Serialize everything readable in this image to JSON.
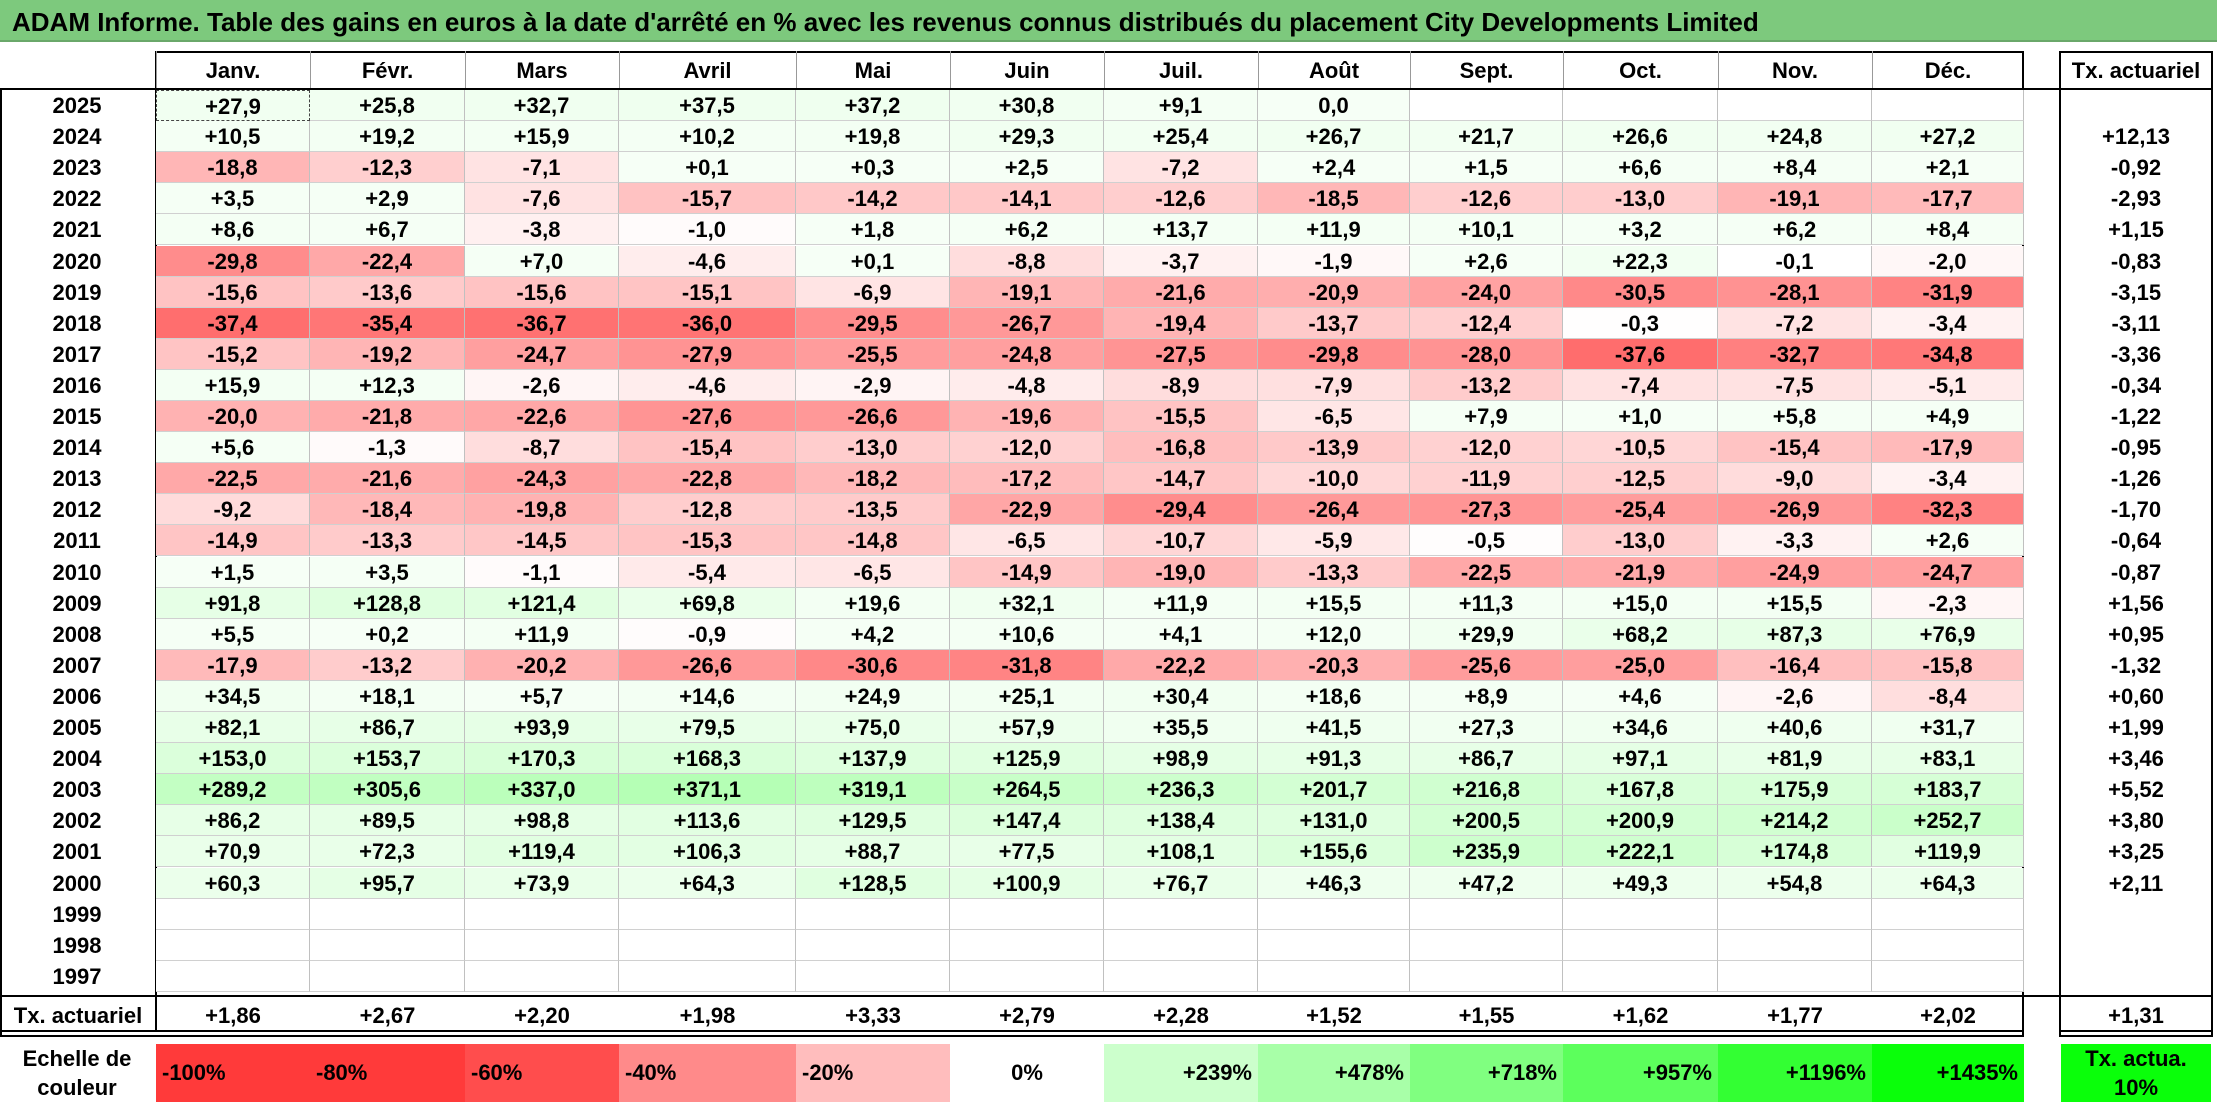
{
  "title": "ADAM Informe. Table des gains en euros à la date d'arrêté en % avec les revenus connus distribués du placement City Developments Limited",
  "months": [
    "Janv.",
    "Févr.",
    "Mars",
    "Avril",
    "Mai",
    "Juin",
    "Juil.",
    "Août",
    "Sept.",
    "Oct.",
    "Nov.",
    "Déc."
  ],
  "right_header": "Tx. actuariel",
  "footer_label": "Tx. actuariel",
  "chart_data": {
    "type": "heatmap",
    "title": "ADAM Informe. Table des gains en euros à la date d'arrêté en % avec les revenus connus distribués du placement City Developments Limited",
    "columns": [
      "Janv.",
      "Févr.",
      "Mars",
      "Avril",
      "Mai",
      "Juin",
      "Juil.",
      "Août",
      "Sept.",
      "Oct.",
      "Nov.",
      "Déc."
    ],
    "rows": [
      {
        "year": "2025",
        "values": [
          "+27,9",
          "+25,8",
          "+32,7",
          "+37,5",
          "+37,2",
          "+30,8",
          "+9,1",
          "0,0",
          "",
          "",
          "",
          ""
        ],
        "tx": ""
      },
      {
        "year": "2024",
        "values": [
          "+10,5",
          "+19,2",
          "+15,9",
          "+10,2",
          "+19,8",
          "+29,3",
          "+25,4",
          "+26,7",
          "+21,7",
          "+26,6",
          "+24,8",
          "+27,2"
        ],
        "tx": "+12,13"
      },
      {
        "year": "2023",
        "values": [
          "-18,8",
          "-12,3",
          "-7,1",
          "+0,1",
          "+0,3",
          "+2,5",
          "-7,2",
          "+2,4",
          "+1,5",
          "+6,6",
          "+8,4",
          "+2,1"
        ],
        "tx": "-0,92"
      },
      {
        "year": "2022",
        "values": [
          "+3,5",
          "+2,9",
          "-7,6",
          "-15,7",
          "-14,2",
          "-14,1",
          "-12,6",
          "-18,5",
          "-12,6",
          "-13,0",
          "-19,1",
          "-17,7"
        ],
        "tx": "-2,93"
      },
      {
        "year": "2021",
        "values": [
          "+8,6",
          "+6,7",
          "-3,8",
          "-1,0",
          "+1,8",
          "+6,2",
          "+13,7",
          "+11,9",
          "+10,1",
          "+3,2",
          "+6,2",
          "+8,4"
        ],
        "tx": "+1,15"
      },
      {
        "year": "2020",
        "values": [
          "-29,8",
          "-22,4",
          "+7,0",
          "-4,6",
          "+0,1",
          "-8,8",
          "-3,7",
          "-1,9",
          "+2,6",
          "+22,3",
          "-0,1",
          "-2,0"
        ],
        "tx": "-0,83"
      },
      {
        "year": "2019",
        "values": [
          "-15,6",
          "-13,6",
          "-15,6",
          "-15,1",
          "-6,9",
          "-19,1",
          "-21,6",
          "-20,9",
          "-24,0",
          "-30,5",
          "-28,1",
          "-31,9"
        ],
        "tx": "-3,15"
      },
      {
        "year": "2018",
        "values": [
          "-37,4",
          "-35,4",
          "-36,7",
          "-36,0",
          "-29,5",
          "-26,7",
          "-19,4",
          "-13,7",
          "-12,4",
          "-0,3",
          "-7,2",
          "-3,4"
        ],
        "tx": "-3,11"
      },
      {
        "year": "2017",
        "values": [
          "-15,2",
          "-19,2",
          "-24,7",
          "-27,9",
          "-25,5",
          "-24,8",
          "-27,5",
          "-29,8",
          "-28,0",
          "-37,6",
          "-32,7",
          "-34,8"
        ],
        "tx": "-3,36"
      },
      {
        "year": "2016",
        "values": [
          "+15,9",
          "+12,3",
          "-2,6",
          "-4,6",
          "-2,9",
          "-4,8",
          "-8,9",
          "-7,9",
          "-13,2",
          "-7,4",
          "-7,5",
          "-5,1"
        ],
        "tx": "-0,34"
      },
      {
        "year": "2015",
        "values": [
          "-20,0",
          "-21,8",
          "-22,6",
          "-27,6",
          "-26,6",
          "-19,6",
          "-15,5",
          "-6,5",
          "+7,9",
          "+1,0",
          "+5,8",
          "+4,9"
        ],
        "tx": "-1,22"
      },
      {
        "year": "2014",
        "values": [
          "+5,6",
          "-1,3",
          "-8,7",
          "-15,4",
          "-13,0",
          "-12,0",
          "-16,8",
          "-13,9",
          "-12,0",
          "-10,5",
          "-15,4",
          "-17,9"
        ],
        "tx": "-0,95"
      },
      {
        "year": "2013",
        "values": [
          "-22,5",
          "-21,6",
          "-24,3",
          "-22,8",
          "-18,2",
          "-17,2",
          "-14,7",
          "-10,0",
          "-11,9",
          "-12,5",
          "-9,0",
          "-3,4"
        ],
        "tx": "-1,26"
      },
      {
        "year": "2012",
        "values": [
          "-9,2",
          "-18,4",
          "-19,8",
          "-12,8",
          "-13,5",
          "-22,9",
          "-29,4",
          "-26,4",
          "-27,3",
          "-25,4",
          "-26,9",
          "-32,3"
        ],
        "tx": "-1,70"
      },
      {
        "year": "2011",
        "values": [
          "-14,9",
          "-13,3",
          "-14,5",
          "-15,3",
          "-14,8",
          "-6,5",
          "-10,7",
          "-5,9",
          "-0,5",
          "-13,0",
          "-3,3",
          "+2,6"
        ],
        "tx": "-0,64"
      },
      {
        "year": "2010",
        "values": [
          "+1,5",
          "+3,5",
          "-1,1",
          "-5,4",
          "-6,5",
          "-14,9",
          "-19,0",
          "-13,3",
          "-22,5",
          "-21,9",
          "-24,9",
          "-24,7"
        ],
        "tx": "-0,87"
      },
      {
        "year": "2009",
        "values": [
          "+91,8",
          "+128,8",
          "+121,4",
          "+69,8",
          "+19,6",
          "+32,1",
          "+11,9",
          "+15,5",
          "+11,3",
          "+15,0",
          "+15,5",
          "-2,3"
        ],
        "tx": "+1,56"
      },
      {
        "year": "2008",
        "values": [
          "+5,5",
          "+0,2",
          "+11,9",
          "-0,9",
          "+4,2",
          "+10,6",
          "+4,1",
          "+12,0",
          "+29,9",
          "+68,2",
          "+87,3",
          "+76,9"
        ],
        "tx": "+0,95"
      },
      {
        "year": "2007",
        "values": [
          "-17,9",
          "-13,2",
          "-20,2",
          "-26,6",
          "-30,6",
          "-31,8",
          "-22,2",
          "-20,3",
          "-25,6",
          "-25,0",
          "-16,4",
          "-15,8"
        ],
        "tx": "-1,32"
      },
      {
        "year": "2006",
        "values": [
          "+34,5",
          "+18,1",
          "+5,7",
          "+14,6",
          "+24,9",
          "+25,1",
          "+30,4",
          "+18,6",
          "+8,9",
          "+4,6",
          "-2,6",
          "-8,4"
        ],
        "tx": "+0,60"
      },
      {
        "year": "2005",
        "values": [
          "+82,1",
          "+86,7",
          "+93,9",
          "+79,5",
          "+75,0",
          "+57,9",
          "+35,5",
          "+41,5",
          "+27,3",
          "+34,6",
          "+40,6",
          "+31,7"
        ],
        "tx": "+1,99"
      },
      {
        "year": "2004",
        "values": [
          "+153,0",
          "+153,7",
          "+170,3",
          "+168,3",
          "+137,9",
          "+125,9",
          "+98,9",
          "+91,3",
          "+86,7",
          "+97,1",
          "+81,9",
          "+83,1"
        ],
        "tx": "+3,46"
      },
      {
        "year": "2003",
        "values": [
          "+289,2",
          "+305,6",
          "+337,0",
          "+371,1",
          "+319,1",
          "+264,5",
          "+236,3",
          "+201,7",
          "+216,8",
          "+167,8",
          "+175,9",
          "+183,7"
        ],
        "tx": "+5,52"
      },
      {
        "year": "2002",
        "values": [
          "+86,2",
          "+89,5",
          "+98,8",
          "+113,6",
          "+129,5",
          "+147,4",
          "+138,4",
          "+131,0",
          "+200,5",
          "+200,9",
          "+214,2",
          "+252,7"
        ],
        "tx": "+3,80"
      },
      {
        "year": "2001",
        "values": [
          "+70,9",
          "+72,3",
          "+119,4",
          "+106,3",
          "+88,7",
          "+77,5",
          "+108,1",
          "+155,6",
          "+235,9",
          "+222,1",
          "+174,8",
          "+119,9"
        ],
        "tx": "+3,25"
      },
      {
        "year": "2000",
        "values": [
          "+60,3",
          "+95,7",
          "+73,9",
          "+64,3",
          "+128,5",
          "+100,9",
          "+76,7",
          "+46,3",
          "+47,2",
          "+49,3",
          "+54,8",
          "+64,3"
        ],
        "tx": "+2,11"
      },
      {
        "year": "1999",
        "values": [
          "",
          "",
          "",
          "",
          "",
          "",
          "",
          "",
          "",
          "",
          "",
          ""
        ],
        "tx": ""
      },
      {
        "year": "1998",
        "values": [
          "",
          "",
          "",
          "",
          "",
          "",
          "",
          "",
          "",
          "",
          "",
          ""
        ],
        "tx": ""
      },
      {
        "year": "1997",
        "values": [
          "",
          "",
          "",
          "",
          "",
          "",
          "",
          "",
          "",
          "",
          "",
          ""
        ],
        "tx": ""
      }
    ],
    "footer": [
      "+1,86",
      "+2,67",
      "+2,20",
      "+1,98",
      "+3,33",
      "+2,79",
      "+2,28",
      "+1,52",
      "+1,55",
      "+1,62",
      "+1,77",
      "+2,02"
    ],
    "footer_total": "+1,31",
    "scale": {
      "label": "Echelle de couleur",
      "steps": [
        {
          "label": "-100%",
          "color": "#ff3a3a"
        },
        {
          "label": "-80%",
          "color": "#ff3a3a"
        },
        {
          "label": "-60%",
          "color": "#ff4d4d"
        },
        {
          "label": "-40%",
          "color": "#ff8a8a"
        },
        {
          "label": "-20%",
          "color": "#ffbdbd"
        },
        {
          "label": "0%",
          "color": "#ffffff"
        },
        {
          "label": "+239%",
          "color": "#ccffcc"
        },
        {
          "label": "+478%",
          "color": "#a8ffa8"
        },
        {
          "label": "+718%",
          "color": "#80ff80"
        },
        {
          "label": "+957%",
          "color": "#5cff5c"
        },
        {
          "label": "+1196%",
          "color": "#33ff33"
        },
        {
          "label": "+1435%",
          "color": "#0aff0a"
        }
      ],
      "right_label": "Tx. actua. 10%",
      "right_color": "#0aff0a"
    }
  }
}
